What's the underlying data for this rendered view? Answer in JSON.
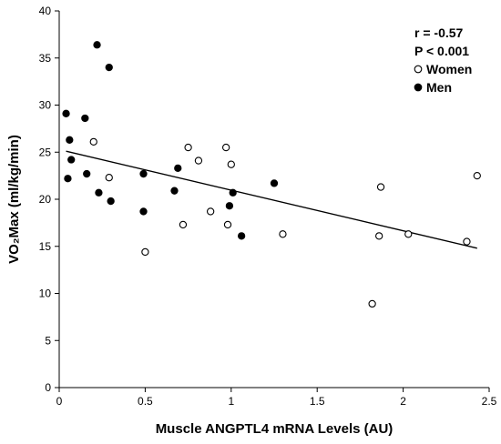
{
  "chart_data": {
    "type": "scatter",
    "title": "",
    "xlabel": "Muscle ANGPTL4 mRNA Levels (AU)",
    "ylabel": "VO₂Max (ml/kg/min)",
    "xlim": [
      0,
      2.5
    ],
    "ylim": [
      0,
      40
    ],
    "x_ticks": [
      "0",
      "0.5",
      "1",
      "1.5",
      "2",
      "2.5"
    ],
    "y_ticks": [
      "0",
      "5",
      "10",
      "15",
      "20",
      "25",
      "30",
      "35",
      "40"
    ],
    "grid": false,
    "legend_position": "top-right",
    "annotations": [
      "r = -0.57",
      "P < 0.001"
    ],
    "series": [
      {
        "name": "Women",
        "marker": "open-circle",
        "points": [
          {
            "x": 0.2,
            "y": 26.1
          },
          {
            "x": 0.29,
            "y": 22.3
          },
          {
            "x": 0.5,
            "y": 14.4
          },
          {
            "x": 0.72,
            "y": 17.3
          },
          {
            "x": 0.75,
            "y": 25.5
          },
          {
            "x": 0.81,
            "y": 24.1
          },
          {
            "x": 0.88,
            "y": 18.7
          },
          {
            "x": 0.97,
            "y": 25.5
          },
          {
            "x": 0.98,
            "y": 17.3
          },
          {
            "x": 1.0,
            "y": 23.7
          },
          {
            "x": 1.3,
            "y": 16.3
          },
          {
            "x": 1.82,
            "y": 8.9
          },
          {
            "x": 1.86,
            "y": 16.1
          },
          {
            "x": 1.87,
            "y": 21.3
          },
          {
            "x": 2.03,
            "y": 16.3
          },
          {
            "x": 2.37,
            "y": 15.5
          },
          {
            "x": 2.43,
            "y": 22.5
          }
        ]
      },
      {
        "name": "Men",
        "marker": "filled-circle",
        "points": [
          {
            "x": 0.04,
            "y": 29.1
          },
          {
            "x": 0.05,
            "y": 22.2
          },
          {
            "x": 0.06,
            "y": 26.3
          },
          {
            "x": 0.07,
            "y": 24.2
          },
          {
            "x": 0.15,
            "y": 28.6
          },
          {
            "x": 0.16,
            "y": 22.7
          },
          {
            "x": 0.22,
            "y": 36.4
          },
          {
            "x": 0.23,
            "y": 20.7
          },
          {
            "x": 0.29,
            "y": 34.0
          },
          {
            "x": 0.3,
            "y": 19.8
          },
          {
            "x": 0.49,
            "y": 22.7
          },
          {
            "x": 0.49,
            "y": 18.7
          },
          {
            "x": 0.67,
            "y": 20.9
          },
          {
            "x": 0.69,
            "y": 23.3
          },
          {
            "x": 0.99,
            "y": 19.3
          },
          {
            "x": 1.01,
            "y": 20.7
          },
          {
            "x": 1.06,
            "y": 16.1
          },
          {
            "x": 1.25,
            "y": 21.7
          }
        ]
      }
    ],
    "trendline": {
      "x": [
        0.04,
        2.43
      ],
      "y": [
        25.1,
        14.8
      ]
    }
  }
}
